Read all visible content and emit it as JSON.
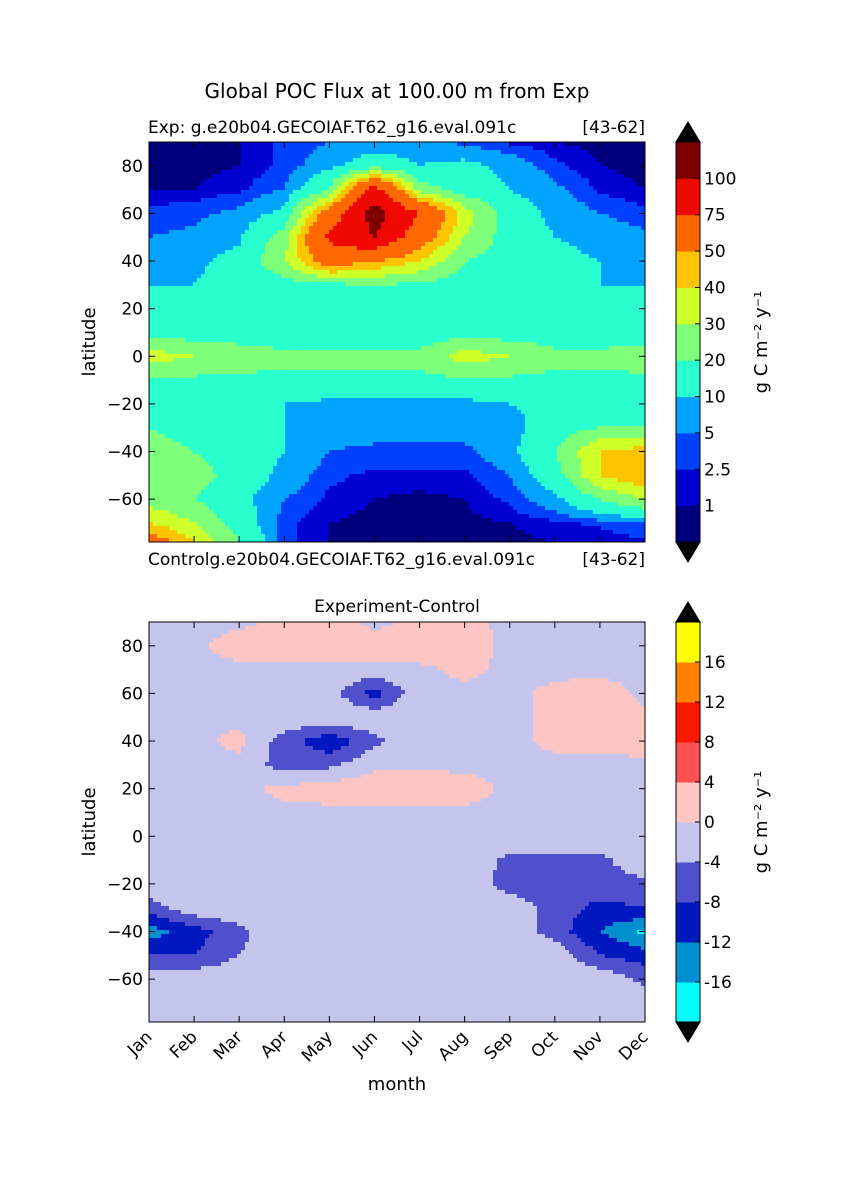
{
  "figure_title": "Global POC Flux at 100.00 m from Exp",
  "panels": [
    {
      "left_label": "Exp:    g.e20b04.GECOIAF.T62_g16.eval.091c",
      "right_label": "[43-62]"
    },
    {
      "top_label": "Controlg.e20b04.GECOIAF.T62_g16.eval.091c",
      "top_right_label": "[43-62]",
      "title": "Experiment-Control"
    }
  ],
  "xlabel": "month",
  "ylabel": "latitude",
  "colorbar_unit": "g C m⁻² y⁻¹",
  "chart_data": [
    {
      "type": "heatmap",
      "title": "Global POC Flux at 100.00 m from Exp",
      "xlabel": "",
      "ylabel": "latitude",
      "x_ticks": [],
      "y_ticks": [
        80,
        60,
        40,
        20,
        0,
        -20,
        -40,
        -60
      ],
      "y_tick_labels": [
        "80",
        "60",
        "40",
        "20",
        "0",
        "−20",
        "−40",
        "−60"
      ],
      "ylim": [
        -78,
        90
      ],
      "xlim": [
        0,
        11
      ],
      "colorbar": {
        "label": "g C m⁻² y⁻¹",
        "levels": [
          "1",
          "2.5",
          "5",
          "10",
          "20",
          "30",
          "40",
          "50",
          "75",
          "100"
        ],
        "colors": [
          "#00007f",
          "#0000d0",
          "#0040ff",
          "#00a4ff",
          "#29ffce",
          "#7dff7a",
          "#ceff29",
          "#ffc400",
          "#ff6800",
          "#f10800",
          "#7f0000"
        ],
        "extend_colors": [
          "#000000",
          "#000000"
        ]
      },
      "lat": [
        90,
        80,
        70,
        60,
        50,
        40,
        30,
        20,
        10,
        0,
        -10,
        -20,
        -30,
        -40,
        -50,
        -60,
        -70,
        -78
      ],
      "month": [
        0,
        1,
        2,
        3,
        4,
        5,
        6,
        7,
        8,
        9,
        10,
        11
      ],
      "values": [
        [
          0.5,
          0.5,
          1,
          3,
          5,
          6,
          7,
          4,
          2,
          1,
          0.5,
          0.5
        ],
        [
          0.5,
          0.5,
          1,
          3,
          8,
          15,
          10,
          12,
          8,
          3,
          1,
          0.5
        ],
        [
          1,
          1,
          2,
          5,
          20,
          85,
          25,
          15,
          10,
          6,
          2,
          1
        ],
        [
          3,
          4,
          6,
          12,
          60,
          110,
          75,
          35,
          15,
          8,
          5,
          3
        ],
        [
          5,
          6,
          9,
          25,
          80,
          100,
          60,
          30,
          15,
          10,
          8,
          6
        ],
        [
          8,
          9,
          12,
          30,
          60,
          50,
          40,
          20,
          15,
          12,
          10,
          9
        ],
        [
          10,
          10,
          12,
          15,
          18,
          20,
          18,
          15,
          12,
          12,
          10,
          10
        ],
        [
          12,
          12,
          12,
          12,
          12,
          12,
          12,
          12,
          12,
          12,
          12,
          12
        ],
        [
          15,
          15,
          15,
          15,
          15,
          15,
          15,
          15,
          15,
          15,
          15,
          15
        ],
        [
          35,
          30,
          25,
          22,
          22,
          22,
          22,
          35,
          30,
          22,
          22,
          25
        ],
        [
          18,
          18,
          18,
          18,
          18,
          18,
          18,
          18,
          18,
          18,
          18,
          18
        ],
        [
          12,
          12,
          12,
          10,
          8,
          8,
          8,
          8,
          10,
          12,
          12,
          12
        ],
        [
          20,
          15,
          12,
          10,
          7,
          7,
          7,
          7,
          7,
          15,
          20,
          20
        ],
        [
          25,
          20,
          15,
          10,
          5,
          4,
          4,
          4,
          8,
          20,
          40,
          45
        ],
        [
          30,
          25,
          15,
          8,
          3,
          2,
          2,
          2,
          5,
          15,
          40,
          50
        ],
        [
          25,
          20,
          12,
          5,
          2,
          1,
          0.5,
          1,
          3,
          8,
          20,
          30
        ],
        [
          40,
          30,
          15,
          3,
          1,
          0.5,
          0.5,
          0.5,
          1,
          2,
          3,
          5
        ],
        [
          60,
          40,
          20,
          3,
          1,
          0.5,
          0.5,
          0.5,
          0.5,
          1,
          1,
          2
        ]
      ]
    },
    {
      "type": "heatmap",
      "title": "Experiment-Control",
      "xlabel": "month",
      "ylabel": "latitude",
      "x_ticks": [
        "Jan",
        "Feb",
        "Mar",
        "Apr",
        "May",
        "Jun",
        "Jul",
        "Aug",
        "Sep",
        "Oct",
        "Nov",
        "Dec"
      ],
      "y_ticks": [
        80,
        60,
        40,
        20,
        0,
        -20,
        -40,
        -60
      ],
      "y_tick_labels": [
        "80",
        "60",
        "40",
        "20",
        "0",
        "−20",
        "−40",
        "−60"
      ],
      "ylim": [
        -78,
        90
      ],
      "xlim": [
        0,
        11
      ],
      "colorbar": {
        "label": "g C m⁻² y⁻¹",
        "levels": [
          "-16",
          "-12",
          "-8",
          "-4",
          "0",
          "4",
          "8",
          "12",
          "16"
        ],
        "colors": [
          "#00ffff",
          "#0090d0",
          "#0018c0",
          "#5050cc",
          "#c4c4ec",
          "#ffc4c4",
          "#ff5050",
          "#ff1800",
          "#ff8000",
          "#ffff00"
        ],
        "extend_colors": [
          "#000000",
          "#000000"
        ]
      },
      "lat": [
        90,
        80,
        70,
        60,
        50,
        40,
        30,
        20,
        10,
        0,
        -10,
        -20,
        -30,
        -40,
        -50,
        -60,
        -70,
        -78
      ],
      "month": [
        0,
        1,
        2,
        3,
        4,
        5,
        6,
        7,
        8,
        9,
        10,
        11
      ],
      "values": [
        [
          -1,
          -1,
          -1,
          1,
          2,
          -1,
          1,
          1,
          -1,
          -1,
          -1,
          -1
        ],
        [
          -1,
          -1,
          2,
          2,
          3,
          2,
          3,
          2,
          -1,
          -1,
          -1,
          -1
        ],
        [
          -1,
          -1,
          -1,
          -1,
          -1,
          -1,
          -1,
          1,
          -1,
          -1,
          -1,
          -1
        ],
        [
          -1,
          -1,
          -1,
          -1,
          -2,
          -10,
          -1,
          -1,
          -1,
          1,
          2,
          -1
        ],
        [
          -1,
          -1,
          -1,
          -1,
          -1,
          -1,
          -1,
          -1,
          -1,
          1,
          1,
          1
        ],
        [
          -1,
          -1,
          1,
          -6,
          -11,
          -5,
          -1,
          -1,
          -1,
          1,
          1,
          2
        ],
        [
          -1,
          -1,
          -1,
          -6,
          -5,
          -1,
          -1,
          -1,
          -1,
          -1,
          -1,
          -1
        ],
        [
          -1,
          -1,
          -1,
          1,
          2,
          3,
          3,
          2,
          -1,
          -1,
          -1,
          -1
        ],
        [
          -1,
          -1,
          -1,
          -1,
          -1,
          -1,
          -1,
          -1,
          -1,
          -1,
          -1,
          -1
        ],
        [
          -1,
          -1,
          -1,
          -1,
          -1,
          -1,
          -1,
          -1,
          -1,
          -1,
          -1,
          -1
        ],
        [
          -1,
          -1,
          -1,
          -1,
          -1,
          -1,
          -1,
          -1,
          -5,
          -5,
          -5,
          -1
        ],
        [
          -1,
          -1,
          -1,
          -1,
          -1,
          -1,
          -1,
          -1,
          -6,
          -7,
          -6,
          -5
        ],
        [
          -6,
          -1,
          -1,
          -1,
          -1,
          -1,
          -1,
          -1,
          -1,
          -6,
          -9,
          -8
        ],
        [
          -14,
          -10,
          -5,
          -1,
          -1,
          -1,
          -1,
          -1,
          -1,
          -6,
          -12,
          -17
        ],
        [
          -8,
          -8,
          -4,
          -1,
          -1,
          -1,
          -1,
          -1,
          -1,
          -1,
          -8,
          -10
        ],
        [
          -1,
          -1,
          -1,
          -1,
          -1,
          -1,
          -1,
          -1,
          -1,
          -1,
          -1,
          -5
        ],
        [
          -1,
          -1,
          -1,
          -1,
          -1,
          -1,
          -1,
          -1,
          -1,
          -1,
          -1,
          -1
        ],
        [
          -1,
          -1,
          -1,
          -1,
          -1,
          -1,
          -1,
          -1,
          -1,
          -1,
          -1,
          -1
        ]
      ]
    }
  ]
}
